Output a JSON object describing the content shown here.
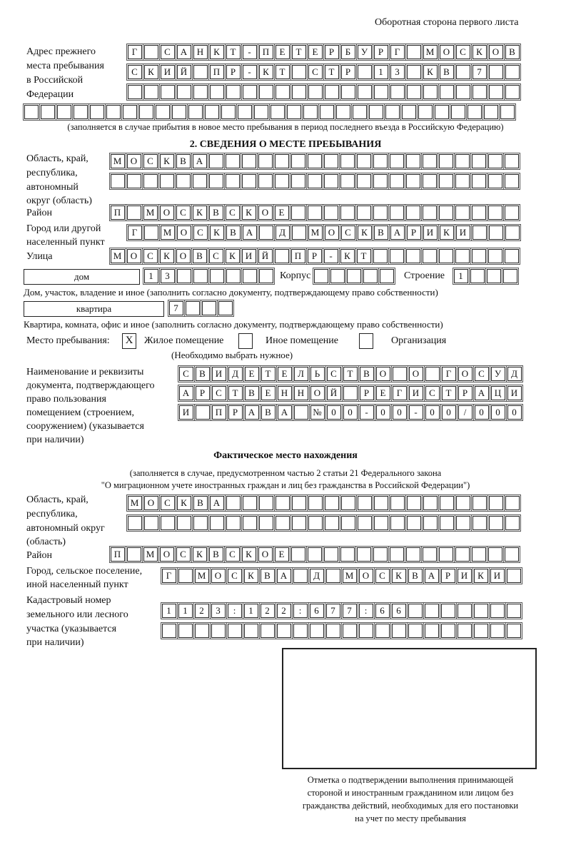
{
  "header": {
    "page_side": "Оборотная сторона первого листа"
  },
  "previous_address": {
    "label": [
      "Адрес прежнего",
      "места пребывания",
      "в Российской",
      "Федерации"
    ],
    "rows": [
      "Г САНКТ-ПЕТЕРБУРГ МОСКОВ",
      "СКИЙ ПР-КТ СТР 13 КВ 7  ",
      "                        "
    ],
    "extra_row": "                              ",
    "note": "(заполняется в случае прибытия в новое место пребывания в период последнего въезда в Российскую Федерацию)"
  },
  "section2": {
    "title": "2. СВЕДЕНИЯ О МЕСТЕ ПРЕБЫВАНИЯ",
    "region_label": [
      "Область, край,",
      "республика,",
      "автономный",
      "округ (область)"
    ],
    "region_rows": [
      "МОСКВА                   ",
      "                         "
    ],
    "district_label": "Район",
    "district_row": "П МОСКВСКОЕ              ",
    "city_label": [
      "Город или другой",
      "населенный пункт"
    ],
    "city_row": "Г МОСКВА Д МОСКВАРИКИ   ",
    "street_label": "Улица",
    "street_row": "МОСКОВСКИЙ ПР-КТ         ",
    "house_type": "дом",
    "house_cells": "13      ",
    "korpus_label": "Корпус",
    "korpus_cells": "     ",
    "building_label": "Строение",
    "building_cells": "1   ",
    "house_note": "Дом, участок, владение и иное (заполнить согласно документу, подтверждающему право собственности)",
    "flat_type": "квартира",
    "flat_cells": "7   ",
    "flat_note": "Квартира, комната, офис и иное (заполнить согласно документу, подтверждающему право собственности)",
    "stay_place_label": "Место пребывания:",
    "stay_options": [
      {
        "label": "Жилое помещение",
        "mark": "X",
        "checked": true
      },
      {
        "label": "Иное помещение",
        "mark": "",
        "checked": false
      },
      {
        "label": "Организация",
        "mark": "",
        "checked": false
      }
    ],
    "stay_hint": "(Необходимо выбрать нужное)",
    "doc_label": [
      "Наименование и реквизиты",
      "документа, подтверждающего",
      "право пользования",
      "помещением (строением,",
      "сооружением) (указывается",
      "при наличии)"
    ],
    "doc_rows": [
      "СВИДЕТЕЛЬСТВО О ГОСУД",
      "АРСТВЕННОЙ РЕГИСТРАЦИ",
      "И ПРАВА №00-00-00/000"
    ]
  },
  "actual": {
    "title": "Фактическое место нахождения",
    "note": [
      "(заполняется в случае, предусмотренном частью 2 статьи 21 Федерального закона",
      "\"О миграционном учете иностранных граждан и лиц без гражданства в Российской Федерации\")"
    ],
    "region_label": [
      "Область, край,",
      "республика,",
      "автономный округ",
      "(область)"
    ],
    "region_rows": [
      "МОСКВА                  ",
      "                        "
    ],
    "district_label": "Район",
    "district_row": "П МОСКВСКОЕ              ",
    "city_label": [
      "Город, сельское поселение,",
      "иной населенный пункт"
    ],
    "city_row": "Г МОСКВА Д МОСКВАРИКИ ",
    "cadastral_label": [
      "Кадастровый номер",
      "земельного или лесного",
      "участка (указывается",
      "при наличии)"
    ],
    "cadastral_rows": [
      "1123:122:677:66       ",
      "                      "
    ]
  },
  "stamp": {
    "caption": [
      "Отметка о подтверждении выполнения принимающей",
      "стороной и иностранным гражданином или лицом без",
      "гражданства действий, необходимых для его постановки",
      "на учет по месту пребывания"
    ]
  }
}
